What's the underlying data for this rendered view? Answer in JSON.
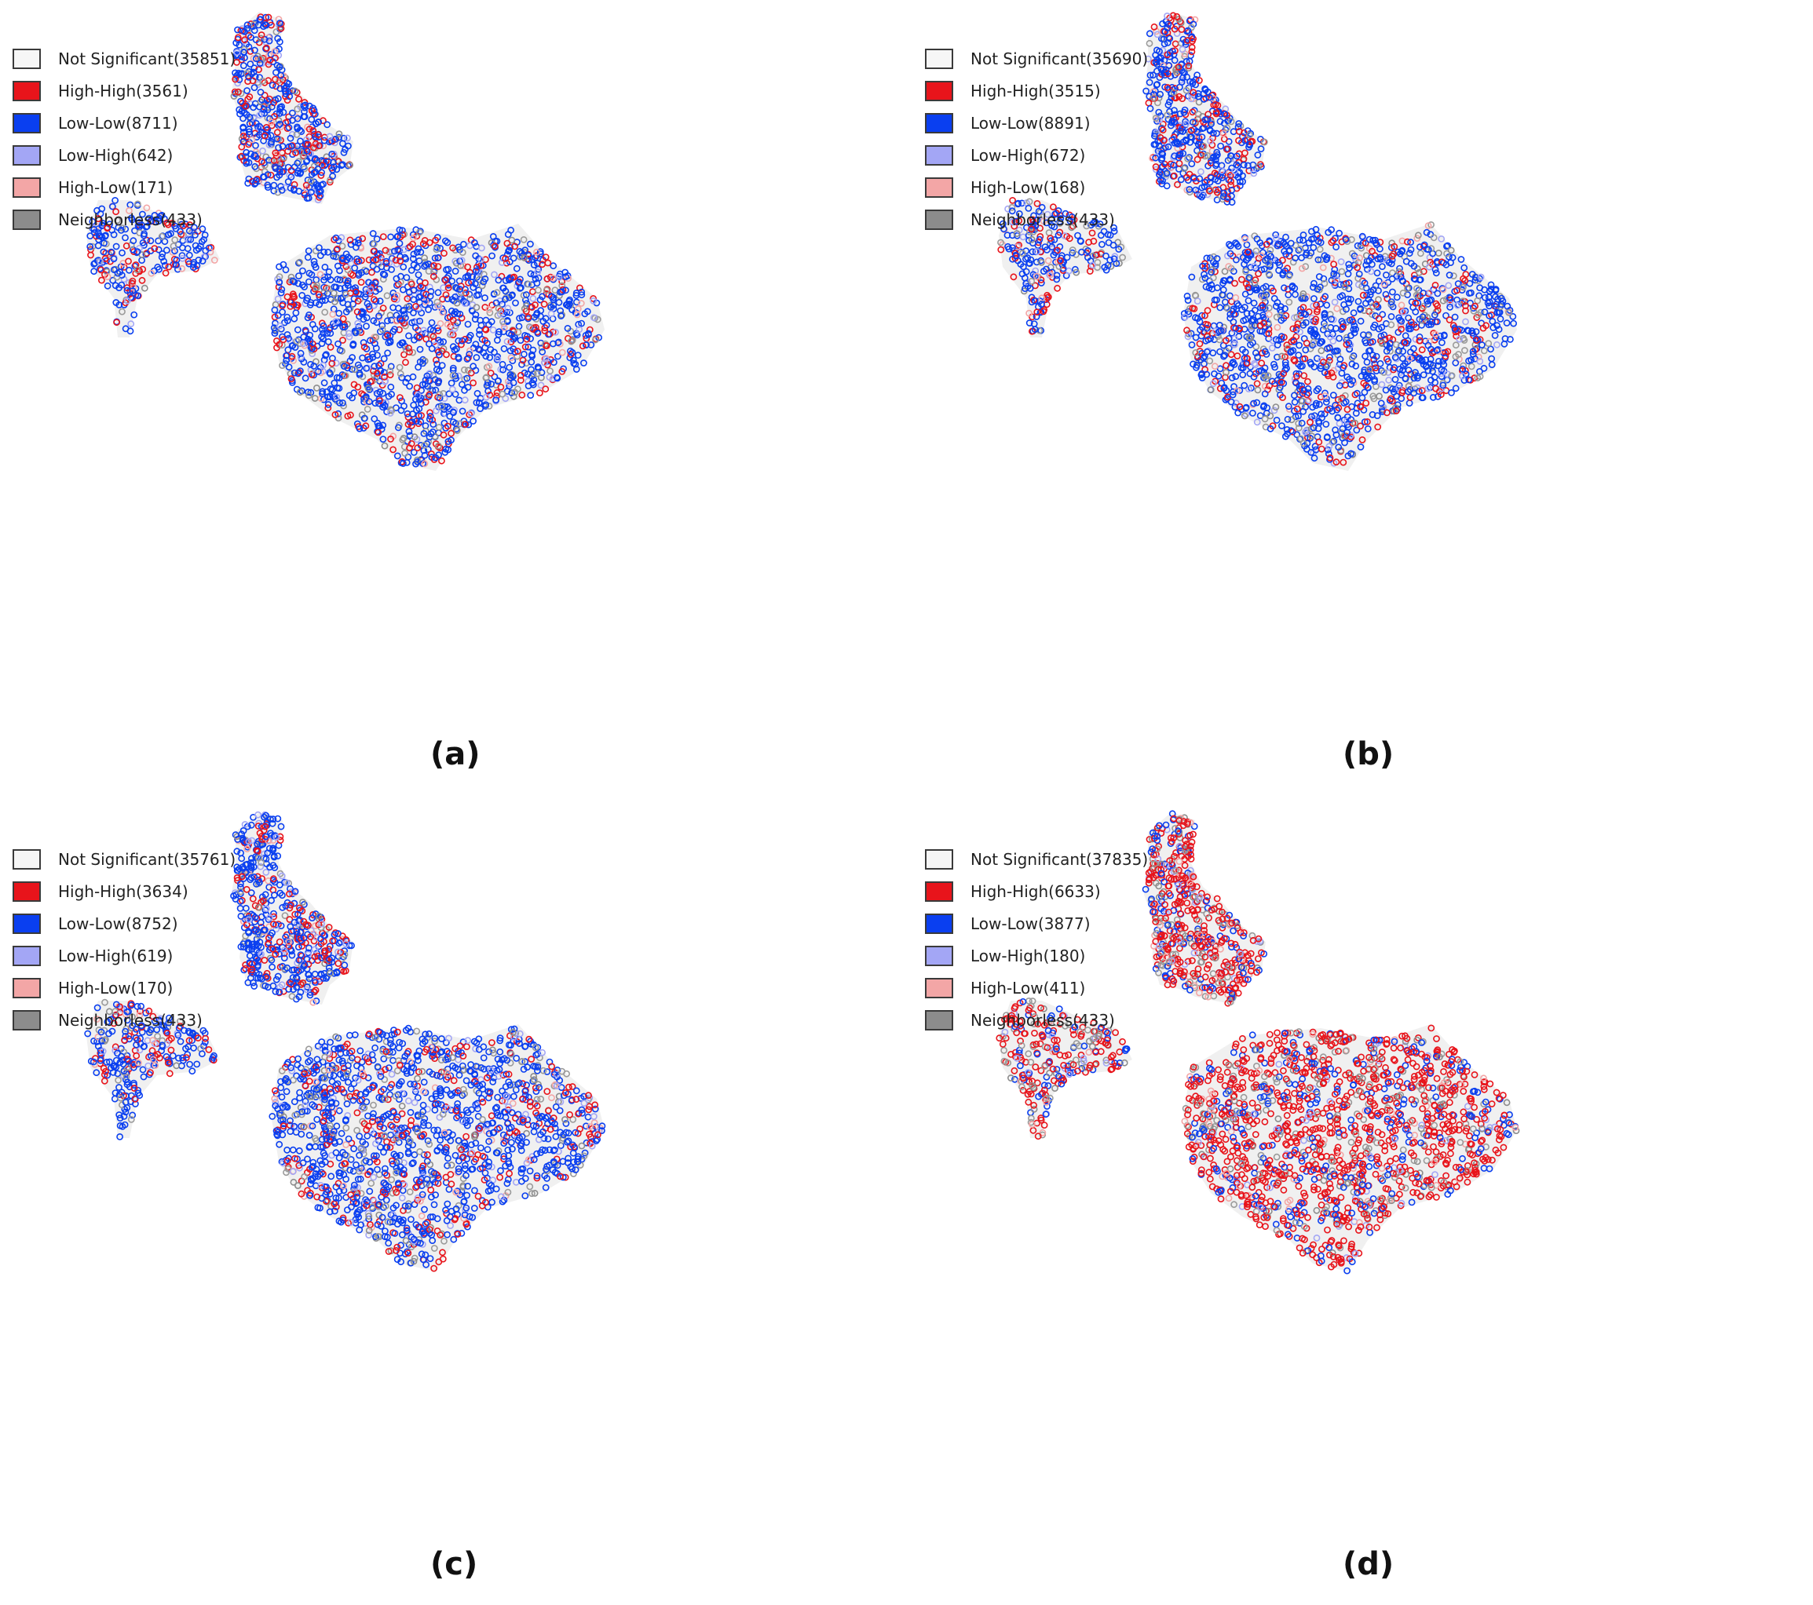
{
  "colors": {
    "not_significant": "#f6f6f6",
    "high_high": "#e8141b",
    "low_low": "#0a3ff0",
    "low_high": "#a3a6f5",
    "high_low": "#f3a6a6",
    "neighborless": "#8c8c8c",
    "boundary": "#f0f0f0"
  },
  "panels": [
    {
      "caption": "(a)",
      "legend": [
        {
          "label": "Not Significant",
          "count": "(35851)",
          "color": "not_significant"
        },
        {
          "label": "High-High",
          "count": "(3561)",
          "color": "high_high"
        },
        {
          "label": "Low-Low",
          "count": "(8711)",
          "color": "low_low"
        },
        {
          "label": "Low-High",
          "count": "(642)",
          "color": "low_high"
        },
        {
          "label": "High-Low",
          "count": "(171)",
          "color": "high_low"
        },
        {
          "label": "Neighborless",
          "count": "(433)",
          "color": "neighborless"
        }
      ]
    },
    {
      "caption": "(b)",
      "legend": [
        {
          "label": "Not Significant",
          "count": "(35690)",
          "color": "not_significant"
        },
        {
          "label": "High-High",
          "count": "(3515)",
          "color": "high_high"
        },
        {
          "label": "Low-Low",
          "count": "(8891)",
          "color": "low_low"
        },
        {
          "label": "Low-High",
          "count": "(672)",
          "color": "low_high"
        },
        {
          "label": "High-Low",
          "count": "(168)",
          "color": "high_low"
        },
        {
          "label": "Neighborless",
          "count": "(433)",
          "color": "neighborless"
        }
      ]
    },
    {
      "caption": "(c)",
      "legend": [
        {
          "label": "Not Significant",
          "count": "(35761)",
          "color": "not_significant"
        },
        {
          "label": "High-High",
          "count": "(3634)",
          "color": "high_high"
        },
        {
          "label": "Low-Low",
          "count": "(8752)",
          "color": "low_low"
        },
        {
          "label": "Low-High",
          "count": "(619)",
          "color": "low_high"
        },
        {
          "label": "High-Low",
          "count": "(170)",
          "color": "high_low"
        },
        {
          "label": "Neighborless",
          "count": "(433)",
          "color": "neighborless"
        }
      ]
    },
    {
      "caption": "(d)",
      "legend": [
        {
          "label": "Not Significant",
          "count": "(37835)",
          "color": "not_significant"
        },
        {
          "label": "High-High",
          "count": "(6633)",
          "color": "high_high"
        },
        {
          "label": "Low-Low",
          "count": "(3877)",
          "color": "low_low"
        },
        {
          "label": "Low-High",
          "count": "(180)",
          "color": "low_high"
        },
        {
          "label": "High-Low",
          "count": "(411)",
          "color": "high_low"
        },
        {
          "label": "Neighborless",
          "count": "(433)",
          "color": "neighborless"
        }
      ]
    }
  ]
}
